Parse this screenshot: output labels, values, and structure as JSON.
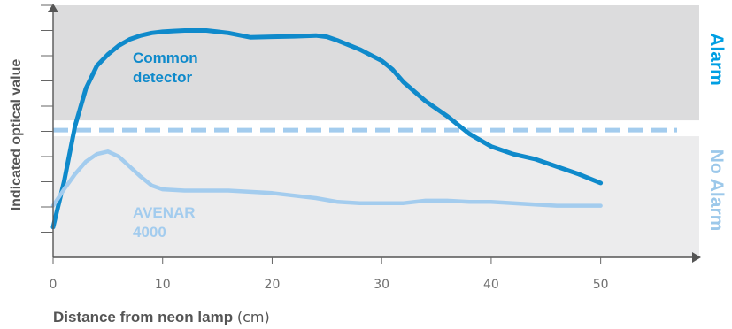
{
  "chart_data": {
    "type": "line",
    "xlabel": "Distance from neon lamp",
    "xunit": "(cm)",
    "ylabel": "Indicated optical value",
    "xlim": [
      0,
      59
    ],
    "ylim": [
      0,
      100
    ],
    "x_ticks": [
      0,
      10,
      20,
      30,
      40,
      50
    ],
    "y_ticks": [
      0,
      10,
      20,
      30,
      40,
      50,
      60,
      70,
      80,
      90,
      100
    ],
    "threshold": 50.5,
    "zones": [
      {
        "name": "Alarm",
        "range": [
          50.5,
          100
        ],
        "color": "#009FE3"
      },
      {
        "name": "No Alarm",
        "range": [
          0,
          50.5
        ],
        "color": "#9CC8EA"
      }
    ],
    "series": [
      {
        "name": "Common detector",
        "label_lines": [
          "Common",
          "detector"
        ],
        "color": "#0F8ACB",
        "points": [
          [
            0,
            12
          ],
          [
            1,
            30
          ],
          [
            2,
            52
          ],
          [
            3,
            67
          ],
          [
            4,
            76
          ],
          [
            5,
            80.5
          ],
          [
            6,
            84
          ],
          [
            7,
            86.5
          ],
          [
            8,
            88
          ],
          [
            9,
            89
          ],
          [
            10,
            89.5
          ],
          [
            11,
            89.8
          ],
          [
            12,
            90
          ],
          [
            14,
            90
          ],
          [
            15,
            89.5
          ],
          [
            16,
            89
          ],
          [
            18,
            87.3
          ],
          [
            20,
            87.5
          ],
          [
            22,
            87.7
          ],
          [
            24,
            88
          ],
          [
            25,
            87.5
          ],
          [
            26,
            86
          ],
          [
            28,
            82.5
          ],
          [
            30,
            78
          ],
          [
            31,
            74.5
          ],
          [
            32,
            69.5
          ],
          [
            34,
            62
          ],
          [
            36,
            56
          ],
          [
            38,
            49
          ],
          [
            40,
            44
          ],
          [
            42,
            41
          ],
          [
            44,
            39
          ],
          [
            46,
            36
          ],
          [
            48,
            33
          ],
          [
            50,
            29.5
          ]
        ]
      },
      {
        "name": "AVENAR 4000",
        "label_lines": [
          "AVENAR",
          "4000"
        ],
        "color": "#A3CCEE",
        "points": [
          [
            0,
            20.5
          ],
          [
            1,
            27
          ],
          [
            2,
            33
          ],
          [
            3,
            38
          ],
          [
            4,
            41
          ],
          [
            5,
            42
          ],
          [
            6,
            40
          ],
          [
            7,
            36
          ],
          [
            8,
            32
          ],
          [
            9,
            28.5
          ],
          [
            10,
            27
          ],
          [
            12,
            26.5
          ],
          [
            16,
            26.5
          ],
          [
            18,
            26
          ],
          [
            20,
            25.5
          ],
          [
            22,
            24.5
          ],
          [
            24,
            23.5
          ],
          [
            26,
            22
          ],
          [
            28,
            21.5
          ],
          [
            30,
            21.5
          ],
          [
            32,
            21.5
          ],
          [
            34,
            22.5
          ],
          [
            36,
            22.5
          ],
          [
            38,
            22
          ],
          [
            40,
            22
          ],
          [
            42,
            21.5
          ],
          [
            44,
            21
          ],
          [
            46,
            20.5
          ],
          [
            48,
            20.5
          ],
          [
            50,
            20.5
          ]
        ]
      }
    ]
  }
}
